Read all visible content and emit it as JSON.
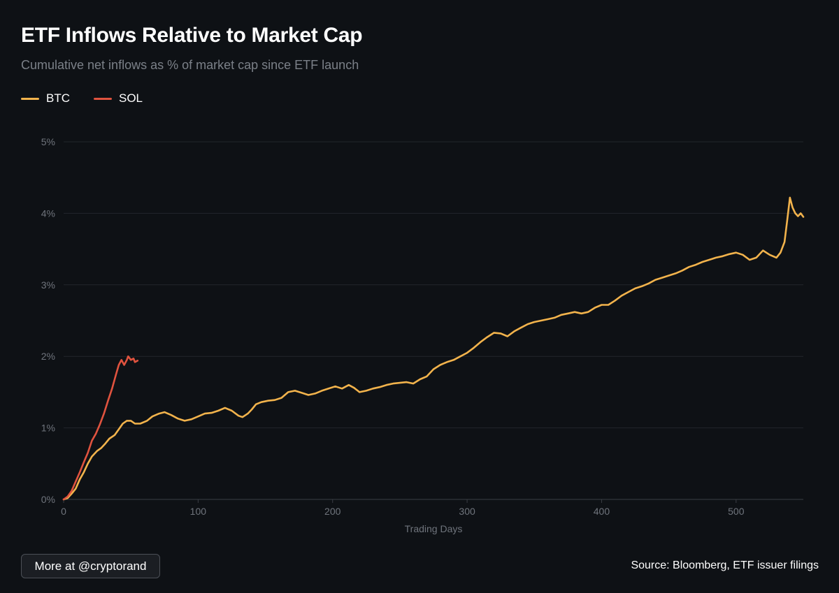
{
  "header": {
    "title": "ETF Inflows Relative to Market Cap",
    "subtitle": "Cumulative net inflows as % of market cap since ETF launch"
  },
  "footer": {
    "more_label": "More at @cryptorand",
    "source": "Source: Bloomberg, ETF issuer filings"
  },
  "colors": {
    "background": "#0e1115",
    "grid": "#22262c",
    "axis": "#3a3e45",
    "tick_text": "#6f747c"
  },
  "chart_data": {
    "type": "line",
    "title": "ETF Inflows Relative to Market Cap",
    "subtitle": "Cumulative net inflows as % of market cap since ETF launch",
    "xlabel": "Trading Days",
    "ylabel": "",
    "xlim": [
      0,
      550
    ],
    "ylim": [
      0,
      5
    ],
    "xticks": [
      0,
      100,
      200,
      300,
      400,
      500
    ],
    "xtick_labels": [
      "0",
      "100",
      "200",
      "300",
      "400",
      "500"
    ],
    "yticks": [
      0,
      1,
      2,
      3,
      4,
      5
    ],
    "ytick_labels": [
      "0%",
      "1%",
      "2%",
      "3%",
      "4%",
      "5%"
    ],
    "grid": true,
    "legend": "top-left",
    "series": [
      {
        "name": "BTC",
        "color": "#f2b34c",
        "points": [
          [
            0,
            0
          ],
          [
            3,
            0.02
          ],
          [
            6,
            0.08
          ],
          [
            9,
            0.15
          ],
          [
            12,
            0.28
          ],
          [
            15,
            0.38
          ],
          [
            18,
            0.5
          ],
          [
            21,
            0.6
          ],
          [
            25,
            0.68
          ],
          [
            28,
            0.72
          ],
          [
            31,
            0.78
          ],
          [
            34,
            0.85
          ],
          [
            38,
            0.9
          ],
          [
            41,
            0.98
          ],
          [
            44,
            1.06
          ],
          [
            47,
            1.1
          ],
          [
            50,
            1.1
          ],
          [
            53,
            1.06
          ],
          [
            57,
            1.06
          ],
          [
            62,
            1.1
          ],
          [
            66,
            1.16
          ],
          [
            71,
            1.2
          ],
          [
            75,
            1.22
          ],
          [
            80,
            1.18
          ],
          [
            85,
            1.13
          ],
          [
            90,
            1.1
          ],
          [
            95,
            1.12
          ],
          [
            100,
            1.16
          ],
          [
            105,
            1.2
          ],
          [
            110,
            1.21
          ],
          [
            115,
            1.24
          ],
          [
            120,
            1.28
          ],
          [
            125,
            1.24
          ],
          [
            130,
            1.17
          ],
          [
            133,
            1.15
          ],
          [
            137,
            1.2
          ],
          [
            140,
            1.26
          ],
          [
            143,
            1.33
          ],
          [
            147,
            1.36
          ],
          [
            152,
            1.38
          ],
          [
            157,
            1.39
          ],
          [
            162,
            1.42
          ],
          [
            167,
            1.5
          ],
          [
            172,
            1.52
          ],
          [
            177,
            1.49
          ],
          [
            182,
            1.46
          ],
          [
            187,
            1.48
          ],
          [
            192,
            1.52
          ],
          [
            197,
            1.55
          ],
          [
            202,
            1.58
          ],
          [
            207,
            1.55
          ],
          [
            212,
            1.6
          ],
          [
            216,
            1.56
          ],
          [
            220,
            1.5
          ],
          [
            225,
            1.52
          ],
          [
            230,
            1.55
          ],
          [
            235,
            1.57
          ],
          [
            240,
            1.6
          ],
          [
            245,
            1.62
          ],
          [
            250,
            1.63
          ],
          [
            255,
            1.64
          ],
          [
            260,
            1.62
          ],
          [
            265,
            1.68
          ],
          [
            270,
            1.72
          ],
          [
            275,
            1.82
          ],
          [
            280,
            1.88
          ],
          [
            285,
            1.92
          ],
          [
            290,
            1.95
          ],
          [
            295,
            2.0
          ],
          [
            300,
            2.05
          ],
          [
            305,
            2.12
          ],
          [
            310,
            2.2
          ],
          [
            315,
            2.27
          ],
          [
            320,
            2.33
          ],
          [
            325,
            2.32
          ],
          [
            330,
            2.28
          ],
          [
            335,
            2.35
          ],
          [
            340,
            2.4
          ],
          [
            345,
            2.45
          ],
          [
            350,
            2.48
          ],
          [
            355,
            2.5
          ],
          [
            360,
            2.52
          ],
          [
            365,
            2.54
          ],
          [
            370,
            2.58
          ],
          [
            375,
            2.6
          ],
          [
            380,
            2.62
          ],
          [
            385,
            2.6
          ],
          [
            390,
            2.62
          ],
          [
            395,
            2.68
          ],
          [
            400,
            2.72
          ],
          [
            405,
            2.72
          ],
          [
            410,
            2.78
          ],
          [
            415,
            2.85
          ],
          [
            420,
            2.9
          ],
          [
            425,
            2.95
          ],
          [
            430,
            2.98
          ],
          [
            435,
            3.02
          ],
          [
            440,
            3.07
          ],
          [
            445,
            3.1
          ],
          [
            450,
            3.13
          ],
          [
            455,
            3.16
          ],
          [
            460,
            3.2
          ],
          [
            465,
            3.25
          ],
          [
            470,
            3.28
          ],
          [
            475,
            3.32
          ],
          [
            480,
            3.35
          ],
          [
            485,
            3.38
          ],
          [
            490,
            3.4
          ],
          [
            495,
            3.43
          ],
          [
            500,
            3.45
          ],
          [
            505,
            3.42
          ],
          [
            510,
            3.35
          ],
          [
            515,
            3.38
          ],
          [
            520,
            3.48
          ],
          [
            525,
            3.42
          ],
          [
            530,
            3.38
          ],
          [
            533,
            3.45
          ],
          [
            536,
            3.6
          ],
          [
            538,
            3.9
          ],
          [
            540,
            4.22
          ],
          [
            542,
            4.08
          ],
          [
            544,
            4.0
          ],
          [
            546,
            3.96
          ],
          [
            548,
            4.0
          ],
          [
            550,
            3.95
          ]
        ]
      },
      {
        "name": "SOL",
        "color": "#e0533f",
        "points": [
          [
            0,
            0
          ],
          [
            3,
            0.04
          ],
          [
            6,
            0.12
          ],
          [
            9,
            0.25
          ],
          [
            12,
            0.38
          ],
          [
            15,
            0.52
          ],
          [
            18,
            0.65
          ],
          [
            21,
            0.82
          ],
          [
            24,
            0.92
          ],
          [
            27,
            1.05
          ],
          [
            30,
            1.2
          ],
          [
            33,
            1.38
          ],
          [
            36,
            1.55
          ],
          [
            39,
            1.75
          ],
          [
            41,
            1.88
          ],
          [
            43,
            1.95
          ],
          [
            45,
            1.88
          ],
          [
            47,
            1.95
          ],
          [
            48,
            2.0
          ],
          [
            50,
            1.95
          ],
          [
            52,
            1.97
          ],
          [
            53,
            1.92
          ],
          [
            55,
            1.94
          ]
        ]
      }
    ]
  }
}
